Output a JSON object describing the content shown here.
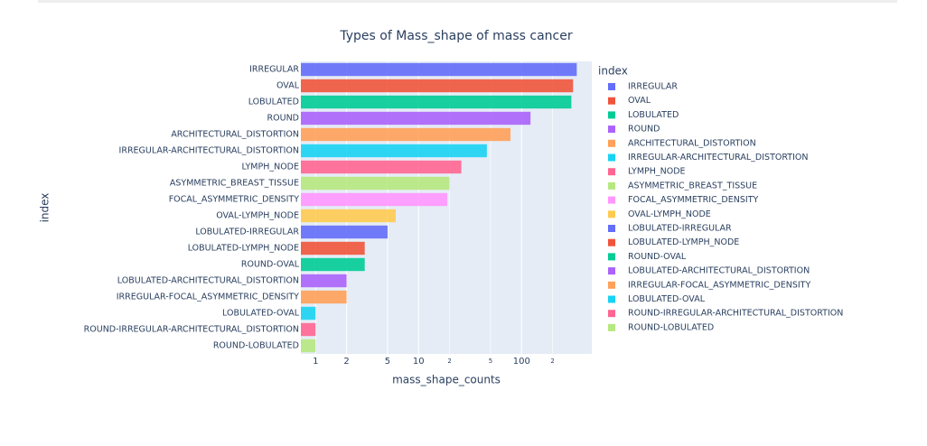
{
  "chart_data": {
    "type": "bar",
    "orientation": "horizontal",
    "title": "Types of Mass_shape of mass cancer",
    "x_label": "mass_shape_counts",
    "y_label": "index",
    "legend_title": "index",
    "categories": [
      "IRREGULAR",
      "OVAL",
      "LOBULATED",
      "ROUND",
      "ARCHITECTURAL_DISTORTION",
      "IRREGULAR-ARCHITECTURAL_DISTORTION",
      "LYMPH_NODE",
      "ASYMMETRIC_BREAST_TISSUE",
      "FOCAL_ASYMMETRIC_DENSITY",
      "OVAL-LYMPH_NODE",
      "LOBULATED-IRREGULAR",
      "LOBULATED-LYMPH_NODE",
      "ROUND-OVAL",
      "LOBULATED-ARCHITECTURAL_DISTORTION",
      "IRREGULAR-FOCAL_ASYMMETRIC_DENSITY",
      "LOBULATED-OVAL",
      "ROUND-IRREGULAR-ARCHITECTURAL_DISTORTION",
      "ROUND-LOBULATED"
    ],
    "values": [
      343,
      316,
      304,
      122,
      78,
      46,
      26,
      20,
      19,
      6,
      5,
      3,
      3,
      2,
      2,
      1,
      1,
      1
    ],
    "colors": [
      "#636efa",
      "#EF553B",
      "#00cc96",
      "#ab63fa",
      "#FFA15A",
      "#19d3f3",
      "#FF6692",
      "#B6E880",
      "#FF97FF",
      "#FECB52",
      "#636efa",
      "#EF553B",
      "#00cc96",
      "#ab63fa",
      "#FFA15A",
      "#19d3f3",
      "#FF6692",
      "#B6E880"
    ],
    "xlog": true,
    "xlim": [
      0.72,
      480
    ],
    "xticks": [
      1,
      2,
      5,
      10,
      {
        "value": 20,
        "label": "2"
      },
      {
        "value": 50,
        "label": "5"
      },
      100,
      {
        "value": 200,
        "label": "2"
      }
    ],
    "grid": true,
    "legend_position": "right"
  }
}
